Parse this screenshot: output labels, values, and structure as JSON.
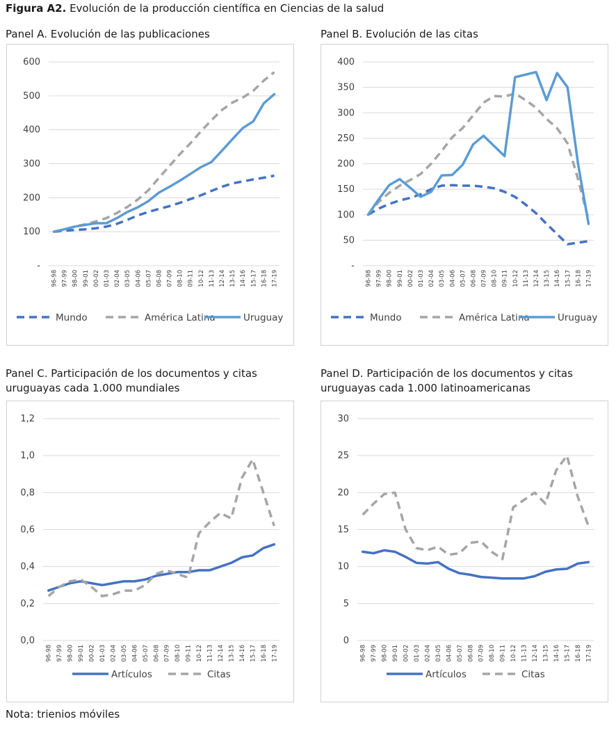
{
  "figure": {
    "label": "Figura A2.",
    "title": "Evolución de la producción científica en Ciencias de la salud",
    "note": "Nota: trienios móviles"
  },
  "colors": {
    "dark_blue": "#4472C4",
    "light_blue": "#5B9BD5",
    "gray": "#A5A5A5",
    "grid": "#D9D9D9"
  },
  "chart_data": [
    {
      "id": "A",
      "type": "line",
      "title": "Panel A. Evolución de las publicaciones",
      "categories": [
        "96-98",
        "97-99",
        "98-00",
        "99-01",
        "00-02",
        "01-03",
        "02-04",
        "03-05",
        "04-06",
        "05-07",
        "06-08",
        "07-09",
        "08-10",
        "09-11",
        "10-12",
        "11-13",
        "12-14",
        "13-15",
        "14-16",
        "15-17",
        "16-18",
        "17-19"
      ],
      "ylim": [
        0,
        600
      ],
      "yticks": [
        0,
        100,
        200,
        300,
        400,
        500,
        600
      ],
      "ytick_labels": [
        "-",
        "100",
        "200",
        "300",
        "400",
        "500",
        "600"
      ],
      "grid": true,
      "legend_position": "bottom",
      "series": [
        {
          "name": "Mundo",
          "style": "dash",
          "color": "#4472C4",
          "values": [
            100,
            103,
            105,
            107,
            110,
            115,
            123,
            135,
            148,
            158,
            167,
            175,
            185,
            196,
            207,
            220,
            232,
            242,
            248,
            254,
            259,
            265
          ]
        },
        {
          "name": "América Latina",
          "style": "dash",
          "color": "#A5A5A5",
          "values": [
            100,
            107,
            115,
            122,
            130,
            140,
            155,
            173,
            195,
            222,
            258,
            293,
            328,
            360,
            395,
            428,
            458,
            480,
            495,
            515,
            545,
            570
          ]
        },
        {
          "name": "Uruguay",
          "style": "solid",
          "color": "#5B9BD5",
          "values": [
            100,
            107,
            115,
            120,
            125,
            125,
            140,
            158,
            172,
            190,
            215,
            232,
            250,
            270,
            290,
            305,
            338,
            372,
            405,
            425,
            478,
            505
          ]
        }
      ]
    },
    {
      "id": "B",
      "type": "line",
      "title": "Panel B. Evolución de las citas",
      "categories": [
        "96-98",
        "97-99",
        "98-00",
        "99-01",
        "00-02",
        "01-03",
        "02-04",
        "03-05",
        "04-06",
        "05-07",
        "06-08",
        "07-09",
        "08-10",
        "09-11",
        "10-12",
        "11-13",
        "12-14",
        "13-15",
        "14-16",
        "15-17",
        "16-18",
        "17-19"
      ],
      "ylim": [
        0,
        400
      ],
      "yticks": [
        0,
        50,
        100,
        150,
        200,
        250,
        300,
        350,
        400
      ],
      "ytick_labels": [
        "-",
        "50",
        "100",
        "150",
        "200",
        "250",
        "300",
        "350",
        "400"
      ],
      "grid": true,
      "legend_position": "bottom",
      "series": [
        {
          "name": "Mundo",
          "style": "dash",
          "color": "#4472C4",
          "values": [
            100,
            112,
            121,
            128,
            133,
            140,
            150,
            157,
            158,
            157,
            157,
            155,
            152,
            145,
            135,
            120,
            103,
            82,
            62,
            42,
            45,
            48
          ]
        },
        {
          "name": "América Latina",
          "style": "dash",
          "color": "#A5A5A5",
          "values": [
            100,
            125,
            143,
            157,
            168,
            180,
            200,
            225,
            252,
            270,
            295,
            320,
            333,
            332,
            338,
            325,
            310,
            288,
            270,
            240,
            170,
            90
          ]
        },
        {
          "name": "Uruguay",
          "style": "solid",
          "color": "#5B9BD5",
          "values": [
            100,
            130,
            158,
            170,
            153,
            135,
            145,
            177,
            178,
            198,
            238,
            255,
            235,
            215,
            370,
            375,
            380,
            325,
            378,
            350,
            200,
            82
          ]
        }
      ]
    },
    {
      "id": "C",
      "type": "line",
      "title_line1": "Panel C. Participación de los documentos y citas",
      "title_line2": "uruguayas cada 1.000 mundiales",
      "categories": [
        "96-98",
        "97-99",
        "98-00",
        "99-01",
        "00-02",
        "01-03",
        "02-04",
        "03-05",
        "04-06",
        "05-07",
        "06-08",
        "07-09",
        "08-10",
        "09-11",
        "10-12",
        "11-13",
        "12-14",
        "13-15",
        "14-16",
        "15-17",
        "16-18",
        "17-19"
      ],
      "ylim": [
        0,
        1.2
      ],
      "yticks": [
        0,
        0.2,
        0.4,
        0.6,
        0.8,
        1.0,
        1.2
      ],
      "ytick_labels": [
        "0,0",
        "0,2",
        "0,4",
        "0,6",
        "0,8",
        "1,0",
        "1,2"
      ],
      "grid": true,
      "legend_position": "bottom",
      "series": [
        {
          "name": "Artículos",
          "style": "solid",
          "color": "#4472C4",
          "values": [
            0.27,
            0.29,
            0.31,
            0.32,
            0.31,
            0.3,
            0.31,
            0.32,
            0.32,
            0.33,
            0.35,
            0.36,
            0.37,
            0.37,
            0.38,
            0.38,
            0.4,
            0.42,
            0.45,
            0.46,
            0.5,
            0.52
          ]
        },
        {
          "name": "Citas",
          "style": "dash",
          "color": "#A5A5A5",
          "values": [
            0.24,
            0.29,
            0.32,
            0.33,
            0.29,
            0.24,
            0.25,
            0.27,
            0.27,
            0.3,
            0.36,
            0.38,
            0.36,
            0.34,
            0.58,
            0.64,
            0.69,
            0.66,
            0.88,
            0.98,
            0.8,
            0.62
          ]
        }
      ]
    },
    {
      "id": "D",
      "type": "line",
      "title_line1": "Panel D. Participación de los documentos y citas",
      "title_line2": "uruguayas cada 1.000 latinoamericanas",
      "categories": [
        "96-98",
        "97-99",
        "98-00",
        "99-01",
        "00-02",
        "01-03",
        "02-04",
        "03-05",
        "04-06",
        "05-07",
        "06-08",
        "07-09",
        "08-10",
        "09-11",
        "10-12",
        "11-13",
        "12-14",
        "13-15",
        "14-16",
        "15-17",
        "16-18",
        "17-19"
      ],
      "ylim": [
        0,
        30
      ],
      "yticks": [
        0,
        5,
        10,
        15,
        20,
        25,
        30
      ],
      "ytick_labels": [
        "0",
        "5",
        "10",
        "15",
        "20",
        "25",
        "30"
      ],
      "grid": true,
      "legend_position": "bottom",
      "series": [
        {
          "name": "Artículos",
          "style": "solid",
          "color": "#4472C4",
          "values": [
            12.0,
            11.8,
            12.2,
            12.0,
            11.3,
            10.5,
            10.4,
            10.6,
            9.7,
            9.1,
            8.9,
            8.6,
            8.5,
            8.4,
            8.4,
            8.4,
            8.7,
            9.3,
            9.6,
            9.7,
            10.4,
            10.6
          ]
        },
        {
          "name": "Citas",
          "style": "dash",
          "color": "#A5A5A5",
          "values": [
            17.0,
            18.5,
            19.8,
            20.0,
            15.0,
            12.5,
            12.2,
            12.7,
            11.6,
            11.8,
            13.2,
            13.4,
            12.0,
            11.0,
            18.0,
            19.0,
            20.0,
            18.5,
            23.0,
            25.0,
            19.5,
            15.5
          ]
        }
      ]
    }
  ]
}
